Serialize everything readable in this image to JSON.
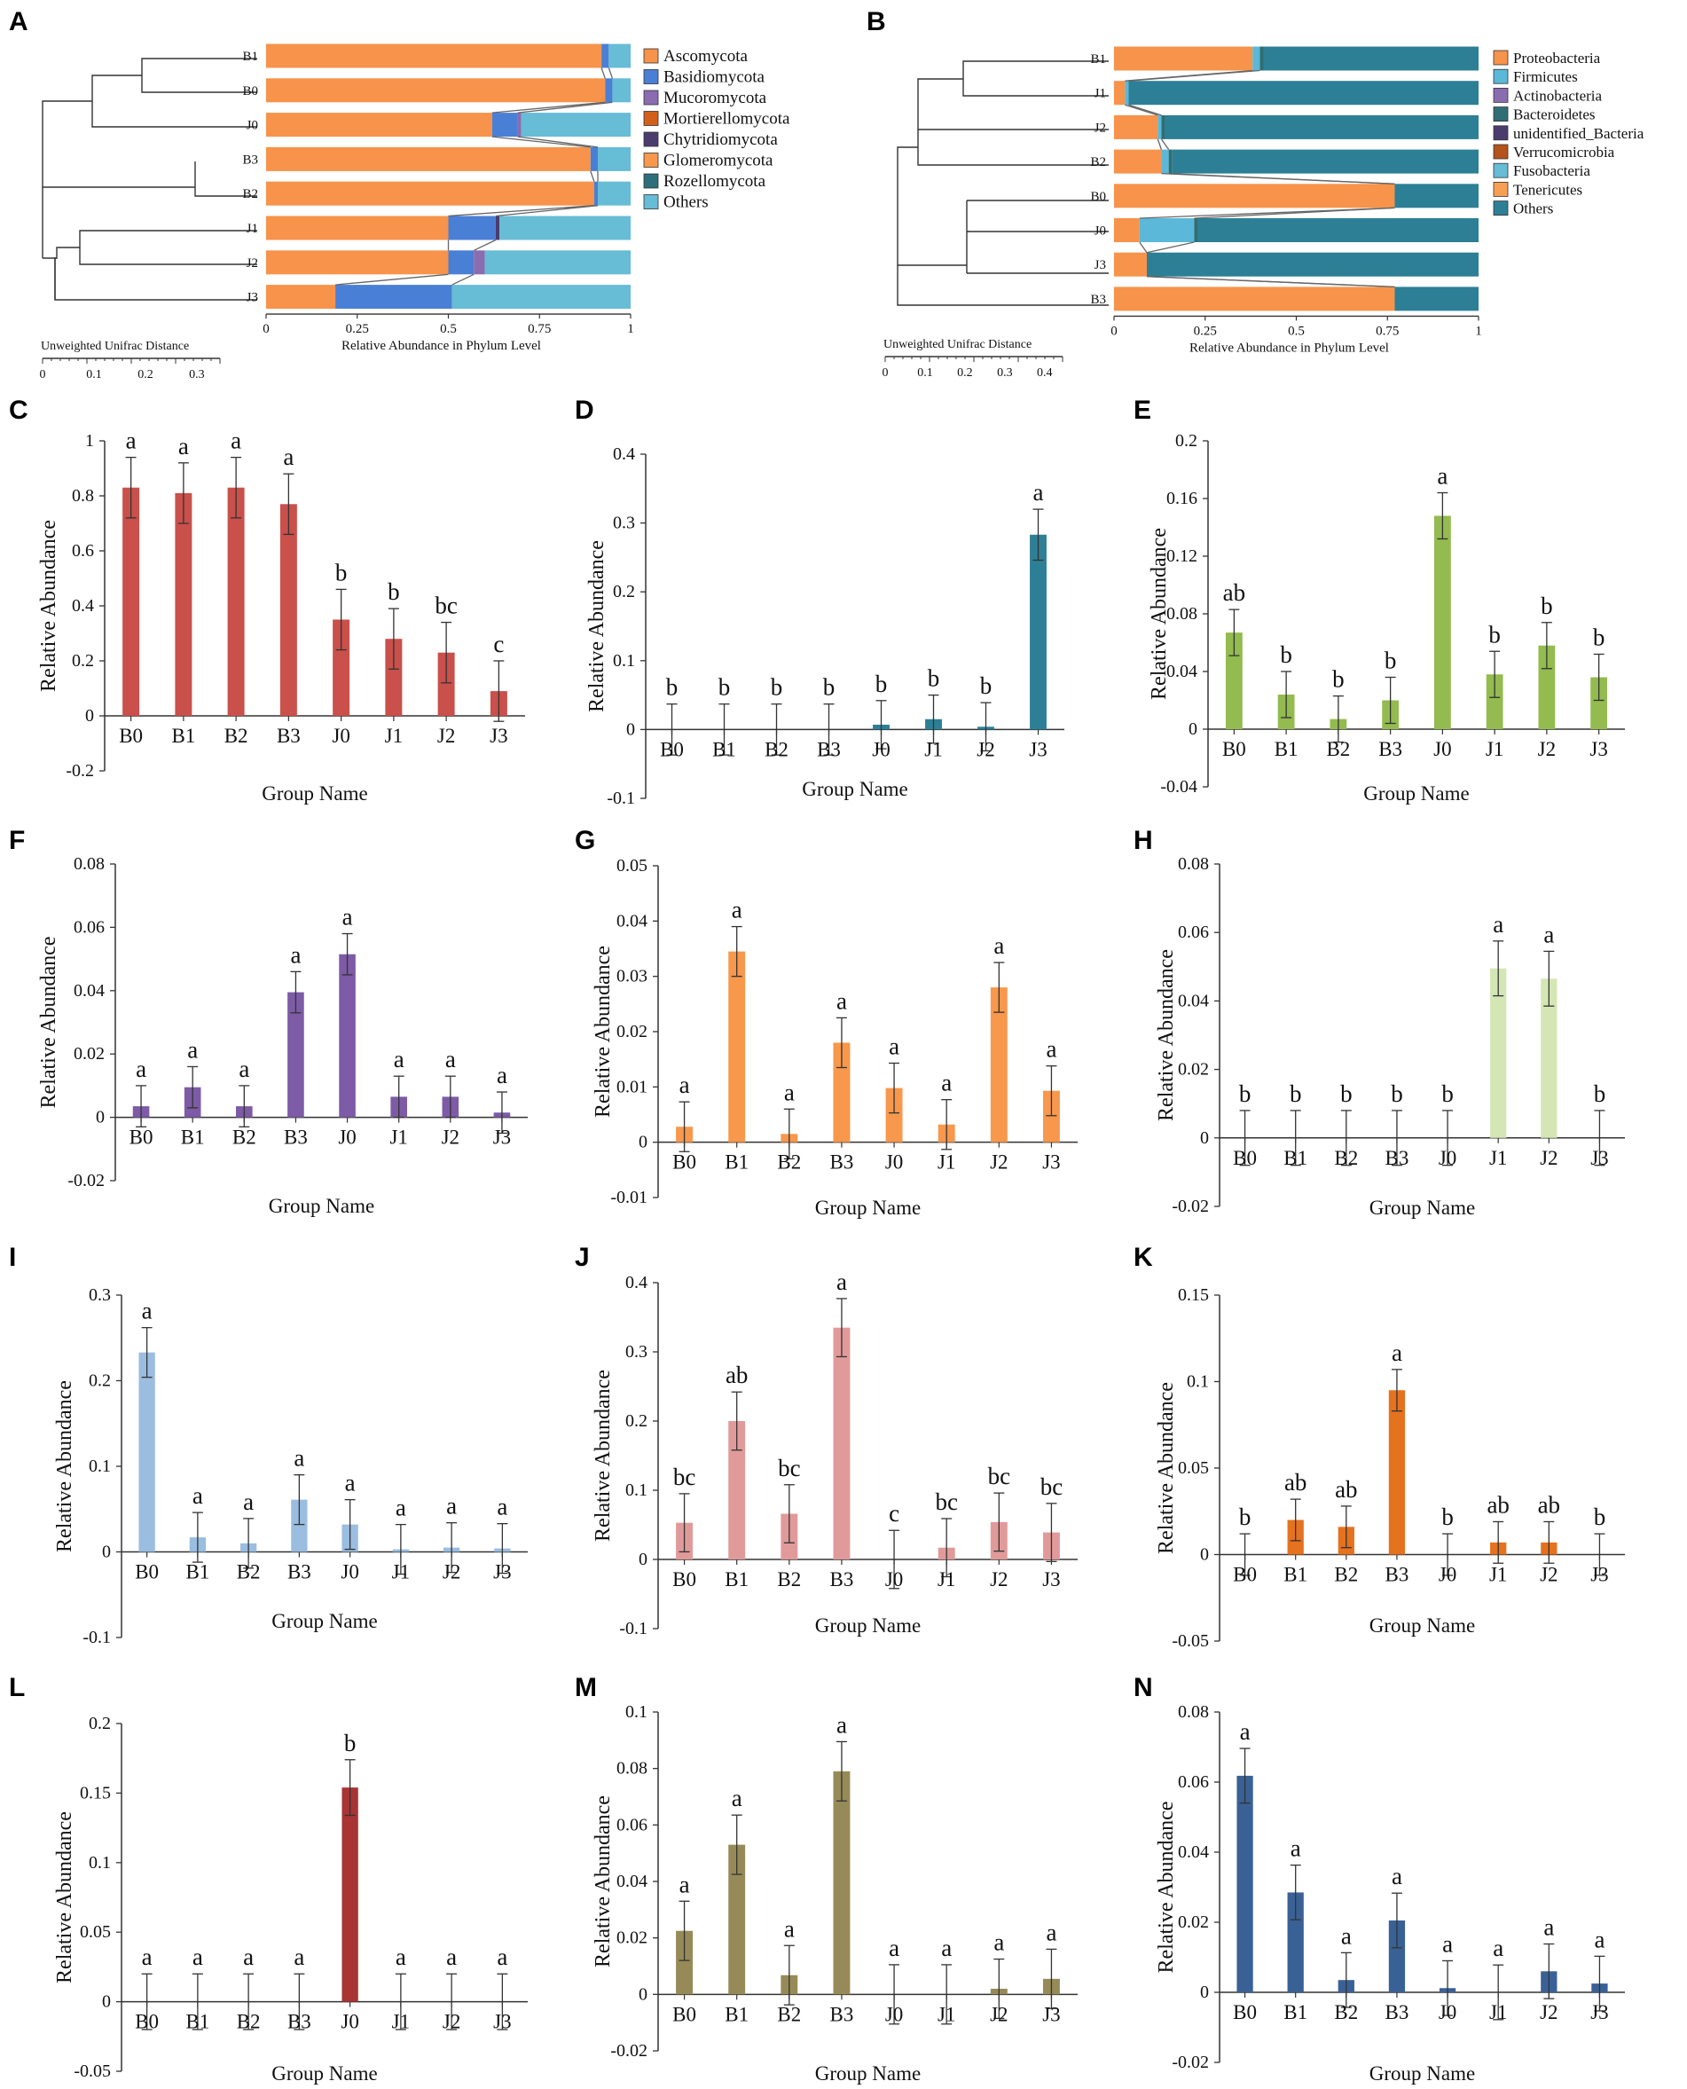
{
  "colors": {
    "ascomycota": "#f7934a",
    "basidiomycota": "#4a7fd6",
    "mucoromycota": "#8a6cb0",
    "mortierellomycota": "#d2601a",
    "chytridiomycota": "#4b3c6e",
    "glomeromycota": "#f7984c",
    "rozellomycota": "#2e6e7a",
    "others_fungi": "#67bcd6",
    "proteobacteria": "#f7934a",
    "firmicutes": "#5cb8d8",
    "actinobacteria": "#8a6cb0",
    "bacteroidetes": "#2f6e74",
    "unidentified_bacteria": "#4b3c6e",
    "verrucomicrobia": "#b4541a",
    "fusobacteria": "#67bcd6",
    "tenericutes": "#f7a055",
    "others_bacteria": "#2d7f96"
  },
  "chart_data": [
    {
      "panel": "A",
      "type": "stacked-bar",
      "orientation": "horizontal",
      "samples": [
        "B1",
        "B0",
        "J0",
        "B3",
        "B2",
        "J1",
        "J2",
        "J3"
      ],
      "series": [
        {
          "name": "Ascomycota",
          "color_key": "ascomycota",
          "values": [
            0.92,
            0.93,
            0.62,
            0.89,
            0.9,
            0.5,
            0.5,
            0.19
          ]
        },
        {
          "name": "Basidiomycota",
          "color_key": "basidiomycota",
          "values": [
            0.02,
            0.02,
            0.07,
            0.02,
            0.01,
            0.13,
            0.07,
            0.32
          ]
        },
        {
          "name": "Mucoromycota",
          "color_key": "mucoromycota",
          "values": [
            0.0,
            0.0,
            0.01,
            0.0,
            0.0,
            0.0,
            0.03,
            0.0
          ]
        },
        {
          "name": "Mortierellomycota",
          "color_key": "mortierellomycota",
          "values": [
            0.0,
            0.0,
            0.0,
            0.0,
            0.0,
            0.0,
            0.0,
            0.0
          ]
        },
        {
          "name": "Chytridiomycota",
          "color_key": "chytridiomycota",
          "values": [
            0.0,
            0.0,
            0.0,
            0.0,
            0.0,
            0.01,
            0.0,
            0.0
          ]
        },
        {
          "name": "Glomeromycota",
          "color_key": "glomeromycota",
          "values": [
            0.0,
            0.0,
            0.0,
            0.0,
            0.0,
            0.0,
            0.0,
            0.0
          ]
        },
        {
          "name": "Rozellomycota",
          "color_key": "rozellomycota",
          "values": [
            0.0,
            0.0,
            0.0,
            0.0,
            0.0,
            0.0,
            0.0,
            0.0
          ]
        },
        {
          "name": "Others",
          "color_key": "others_fungi",
          "values": [
            0.06,
            0.05,
            0.3,
            0.09,
            0.09,
            0.36,
            0.4,
            0.49
          ]
        }
      ],
      "xlim": [
        0,
        1
      ],
      "xticks": [
        "0",
        "0.25",
        "0.5",
        "0.75",
        "1"
      ],
      "xlabel": "Relative Abundance in Phylum Level",
      "tree_label": "Unweighted Unifrac Distance",
      "tree_ticks": [
        "0",
        "0.1",
        "0.2",
        "0.3"
      ]
    },
    {
      "panel": "B",
      "type": "stacked-bar",
      "orientation": "horizontal",
      "samples": [
        "B1",
        "J1",
        "J2",
        "B2",
        "B0",
        "J0",
        "J3",
        "B3"
      ],
      "series": [
        {
          "name": "Proteobacteria",
          "color_key": "proteobacteria",
          "values": [
            0.38,
            0.03,
            0.12,
            0.13,
            0.77,
            0.07,
            0.09,
            0.77
          ]
        },
        {
          "name": "Firmicutes",
          "color_key": "firmicutes",
          "values": [
            0.02,
            0.01,
            0.01,
            0.02,
            0.0,
            0.15,
            0.0,
            0.0
          ]
        },
        {
          "name": "Actinobacteria",
          "color_key": "actinobacteria",
          "values": [
            0.0,
            0.0,
            0.0,
            0.0,
            0.0,
            0.0,
            0.0,
            0.0
          ]
        },
        {
          "name": "Bacteroidetes",
          "color_key": "bacteroidetes",
          "values": [
            0.01,
            0.0,
            0.01,
            0.01,
            0.0,
            0.01,
            0.0,
            0.0
          ]
        },
        {
          "name": "unidentified_Bacteria",
          "color_key": "unidentified_bacteria",
          "values": [
            0.0,
            0.0,
            0.0,
            0.0,
            0.0,
            0.0,
            0.0,
            0.0
          ]
        },
        {
          "name": "Verrucomicrobia",
          "color_key": "verrucomicrobia",
          "values": [
            0.0,
            0.0,
            0.0,
            0.0,
            0.0,
            0.0,
            0.0,
            0.0
          ]
        },
        {
          "name": "Fusobacteria",
          "color_key": "fusobacteria",
          "values": [
            0.0,
            0.0,
            0.0,
            0.0,
            0.0,
            0.0,
            0.0,
            0.0
          ]
        },
        {
          "name": "Tenericutes",
          "color_key": "tenericutes",
          "values": [
            0.0,
            0.0,
            0.0,
            0.0,
            0.0,
            0.0,
            0.0,
            0.0
          ]
        },
        {
          "name": "Others",
          "color_key": "others_bacteria",
          "values": [
            0.59,
            0.96,
            0.86,
            0.84,
            0.23,
            0.77,
            0.91,
            0.23
          ]
        }
      ],
      "xlim": [
        0,
        1
      ],
      "xticks": [
        "0",
        "0.25",
        "0.5",
        "0.75",
        "1"
      ],
      "xlabel": "Relative Abundance in Phylum Level",
      "tree_label": "Unweighted Unifrac Distance",
      "tree_ticks": [
        "0",
        "0.1",
        "0.2",
        "0.3",
        "0.4"
      ]
    },
    {
      "panel": "C",
      "type": "bar",
      "categories": [
        "B0",
        "B1",
        "B2",
        "B3",
        "J0",
        "J1",
        "J2",
        "J3"
      ],
      "values": [
        0.83,
        0.81,
        0.83,
        0.77,
        0.35,
        0.28,
        0.23,
        0.09
      ],
      "errors": [
        0.11,
        0.11,
        0.11,
        0.11,
        0.11,
        0.11,
        0.11,
        0.11
      ],
      "letters": [
        "a",
        "a",
        "a",
        "a",
        "b",
        "b",
        "bc",
        "c"
      ],
      "ylim": [
        -0.2,
        1
      ],
      "yticks": [
        "-0.2",
        "0",
        "0.2",
        "0.4",
        "0.6",
        "0.8",
        "1"
      ],
      "ylabel": "Relative Abundance",
      "xlabel": "Group Name",
      "color": "#c9504b"
    },
    {
      "panel": "D",
      "type": "bar",
      "categories": [
        "B0",
        "B1",
        "B2",
        "B3",
        "J0",
        "J1",
        "J2",
        "J3"
      ],
      "values": [
        0.0,
        0.0,
        0.0,
        0.0,
        0.007,
        0.015,
        0.004,
        0.283
      ],
      "errors": [
        0.037,
        0.037,
        0.037,
        0.037,
        0.035,
        0.035,
        0.035,
        0.037
      ],
      "letters": [
        "b",
        "b",
        "b",
        "b",
        "b",
        "b",
        "b",
        "a"
      ],
      "ylim": [
        -0.1,
        0.4
      ],
      "yticks": [
        "-0.1",
        "0",
        "0.1",
        "0.2",
        "0.3",
        "0.4"
      ],
      "ylabel": "Relative Abundance",
      "xlabel": "Group Name",
      "color": "#2d7f96"
    },
    {
      "panel": "E",
      "type": "bar",
      "categories": [
        "B0",
        "B1",
        "B2",
        "B3",
        "J0",
        "J1",
        "J2",
        "J3"
      ],
      "values": [
        0.067,
        0.024,
        0.007,
        0.02,
        0.148,
        0.038,
        0.058,
        0.036
      ],
      "errors": [
        0.016,
        0.016,
        0.016,
        0.016,
        0.016,
        0.016,
        0.016,
        0.016
      ],
      "letters": [
        "ab",
        "b",
        "b",
        "b",
        "a",
        "b",
        "b",
        "b"
      ],
      "ylim": [
        -0.04,
        0.2
      ],
      "yticks": [
        "-0.04",
        "0",
        "0.04",
        "0.08",
        "0.12",
        "0.16",
        "0.2"
      ],
      "ylabel": "Relative Abundance",
      "xlabel": "Group Name",
      "color": "#93bb4f"
    },
    {
      "panel": "F",
      "type": "bar",
      "categories": [
        "B0",
        "B1",
        "B2",
        "B3",
        "J0",
        "J1",
        "J2",
        "J3"
      ],
      "values": [
        0.0035,
        0.0095,
        0.0035,
        0.0395,
        0.0515,
        0.0065,
        0.0065,
        0.0015
      ],
      "errors": [
        0.0065,
        0.0065,
        0.0065,
        0.0065,
        0.0065,
        0.0065,
        0.0065,
        0.0065
      ],
      "letters": [
        "a",
        "a",
        "a",
        "a",
        "a",
        "a",
        "a",
        "a"
      ],
      "ylim": [
        -0.02,
        0.08
      ],
      "yticks": [
        "-0.02",
        "0",
        "0.02",
        "0.04",
        "0.06",
        "0.08"
      ],
      "ylabel": "Relative Abundance",
      "xlabel": "Group Name",
      "color": "#7d5ba6"
    },
    {
      "panel": "G",
      "type": "bar",
      "categories": [
        "B0",
        "B1",
        "B2",
        "B3",
        "J0",
        "J1",
        "J2",
        "J3"
      ],
      "values": [
        0.0028,
        0.0345,
        0.0015,
        0.018,
        0.0098,
        0.0032,
        0.028,
        0.0093
      ],
      "errors": [
        0.0045,
        0.0045,
        0.0045,
        0.0045,
        0.0045,
        0.0045,
        0.0045,
        0.0045
      ],
      "letters": [
        "a",
        "a",
        "a",
        "a",
        "a",
        "a",
        "a",
        "a"
      ],
      "ylim": [
        -0.01,
        0.05
      ],
      "yticks": [
        "-0.01",
        "0",
        "0.01",
        "0.02",
        "0.03",
        "0.04",
        "0.05"
      ],
      "ylabel": "Relative Abundance",
      "xlabel": "Group Name",
      "color": "#f7984c"
    },
    {
      "panel": "H",
      "type": "bar",
      "categories": [
        "B0",
        "B1",
        "B2",
        "B3",
        "J0",
        "J1",
        "J2",
        "J3"
      ],
      "values": [
        0.0,
        0.0,
        0.0,
        0.0,
        0.0,
        0.0495,
        0.0465,
        0.0
      ],
      "errors": [
        0.008,
        0.008,
        0.008,
        0.008,
        0.008,
        0.008,
        0.008,
        0.008
      ],
      "letters": [
        "b",
        "b",
        "b",
        "b",
        "b",
        "a",
        "a",
        "b"
      ],
      "ylim": [
        -0.02,
        0.08
      ],
      "yticks": [
        "-0.02",
        "0",
        "0.02",
        "0.04",
        "0.06",
        "0.08"
      ],
      "ylabel": "Relative Abundance",
      "xlabel": "Group Name",
      "color": "#d5e6b5"
    },
    {
      "panel": "I",
      "type": "bar",
      "categories": [
        "B0",
        "B1",
        "B2",
        "B3",
        "J0",
        "J1",
        "J2",
        "J3"
      ],
      "values": [
        0.233,
        0.017,
        0.01,
        0.061,
        0.032,
        0.003,
        0.005,
        0.004
      ],
      "errors": [
        0.029,
        0.029,
        0.029,
        0.029,
        0.029,
        0.029,
        0.029,
        0.029
      ],
      "letters": [
        "a",
        "a",
        "a",
        "a",
        "a",
        "a",
        "a",
        "a"
      ],
      "ylim": [
        -0.1,
        0.3
      ],
      "yticks": [
        "-0.1",
        "0",
        "0.1",
        "0.2",
        "0.3"
      ],
      "ylabel": "Relative Abundance",
      "xlabel": "Group Name",
      "color": "#9abde0"
    },
    {
      "panel": "J",
      "type": "bar",
      "categories": [
        "B0",
        "B1",
        "B2",
        "B3",
        "J0",
        "J1",
        "J2",
        "J3"
      ],
      "values": [
        0.053,
        0.2,
        0.066,
        0.335,
        0.0,
        0.017,
        0.054,
        0.039
      ],
      "errors": [
        0.042,
        0.042,
        0.042,
        0.042,
        0.042,
        0.042,
        0.042,
        0.042
      ],
      "letters": [
        "bc",
        "ab",
        "bc",
        "a",
        "c",
        "bc",
        "bc",
        "bc"
      ],
      "ylim": [
        -0.1,
        0.4
      ],
      "yticks": [
        "-0.1",
        "0",
        "0.1",
        "0.2",
        "0.3",
        "0.4"
      ],
      "ylabel": "Relative Abundance",
      "xlabel": "Group Name",
      "color": "#e19a9a"
    },
    {
      "panel": "K",
      "type": "bar",
      "categories": [
        "B0",
        "B1",
        "B2",
        "B3",
        "J0",
        "J1",
        "J2",
        "J3"
      ],
      "values": [
        0.0,
        0.02,
        0.016,
        0.095,
        0.0,
        0.007,
        0.007,
        0.0
      ],
      "errors": [
        0.012,
        0.012,
        0.012,
        0.012,
        0.012,
        0.012,
        0.012,
        0.012
      ],
      "letters": [
        "b",
        "ab",
        "ab",
        "a",
        "b",
        "ab",
        "ab",
        "b"
      ],
      "ylim": [
        -0.05,
        0.15
      ],
      "yticks": [
        "-0.05",
        "0",
        "0.05",
        "0.1",
        "0.15"
      ],
      "ylabel": "Relative Abundance",
      "xlabel": "Group Name",
      "color": "#e5721f"
    },
    {
      "panel": "L",
      "type": "bar",
      "categories": [
        "B0",
        "B1",
        "B2",
        "B3",
        "J0",
        "J1",
        "J2",
        "J3"
      ],
      "values": [
        0.0,
        0.0,
        0.0,
        0.0,
        0.154,
        0.0,
        0.0,
        0.0
      ],
      "errors": [
        0.02,
        0.02,
        0.02,
        0.02,
        0.02,
        0.02,
        0.02,
        0.02
      ],
      "letters": [
        "a",
        "a",
        "a",
        "a",
        "b",
        "a",
        "a",
        "a"
      ],
      "ylim": [
        -0.05,
        0.2
      ],
      "yticks": [
        "-0.05",
        "0",
        "0.05",
        "0.1",
        "0.15",
        "0.2"
      ],
      "ylabel": "Relative Abundance",
      "xlabel": "Group Name",
      "color": "#a83434"
    },
    {
      "panel": "M",
      "type": "bar",
      "categories": [
        "B0",
        "B1",
        "B2",
        "B3",
        "J0",
        "J1",
        "J2",
        "J3"
      ],
      "values": [
        0.0225,
        0.053,
        0.0068,
        0.079,
        0.0,
        0.0,
        0.002,
        0.0055
      ],
      "errors": [
        0.0105,
        0.0105,
        0.0105,
        0.0105,
        0.0105,
        0.0105,
        0.0105,
        0.0105
      ],
      "letters": [
        "a",
        "a",
        "a",
        "a",
        "a",
        "a",
        "a",
        "a"
      ],
      "ylim": [
        -0.02,
        0.1
      ],
      "yticks": [
        "-0.02",
        "0",
        "0.02",
        "0.04",
        "0.06",
        "0.08",
        "0.1"
      ],
      "ylabel": "Relative Abundance",
      "xlabel": "Group Name",
      "color": "#968b58"
    },
    {
      "panel": "N",
      "type": "bar",
      "categories": [
        "B0",
        "B1",
        "B2",
        "B3",
        "J0",
        "J1",
        "J2",
        "J3"
      ],
      "values": [
        0.0618,
        0.0285,
        0.0035,
        0.0205,
        0.0012,
        0.0,
        0.006,
        0.0025
      ],
      "errors": [
        0.0078,
        0.0078,
        0.0078,
        0.0078,
        0.0078,
        0.0078,
        0.0078,
        0.0078
      ],
      "letters": [
        "a",
        "a",
        "a",
        "a",
        "a",
        "a",
        "a",
        "a"
      ],
      "ylim": [
        -0.02,
        0.08
      ],
      "yticks": [
        "-0.02",
        "0",
        "0.02",
        "0.04",
        "0.06",
        "0.08"
      ],
      "ylabel": "Relative Abundance",
      "xlabel": "Group Name",
      "color": "#3a6195"
    }
  ]
}
